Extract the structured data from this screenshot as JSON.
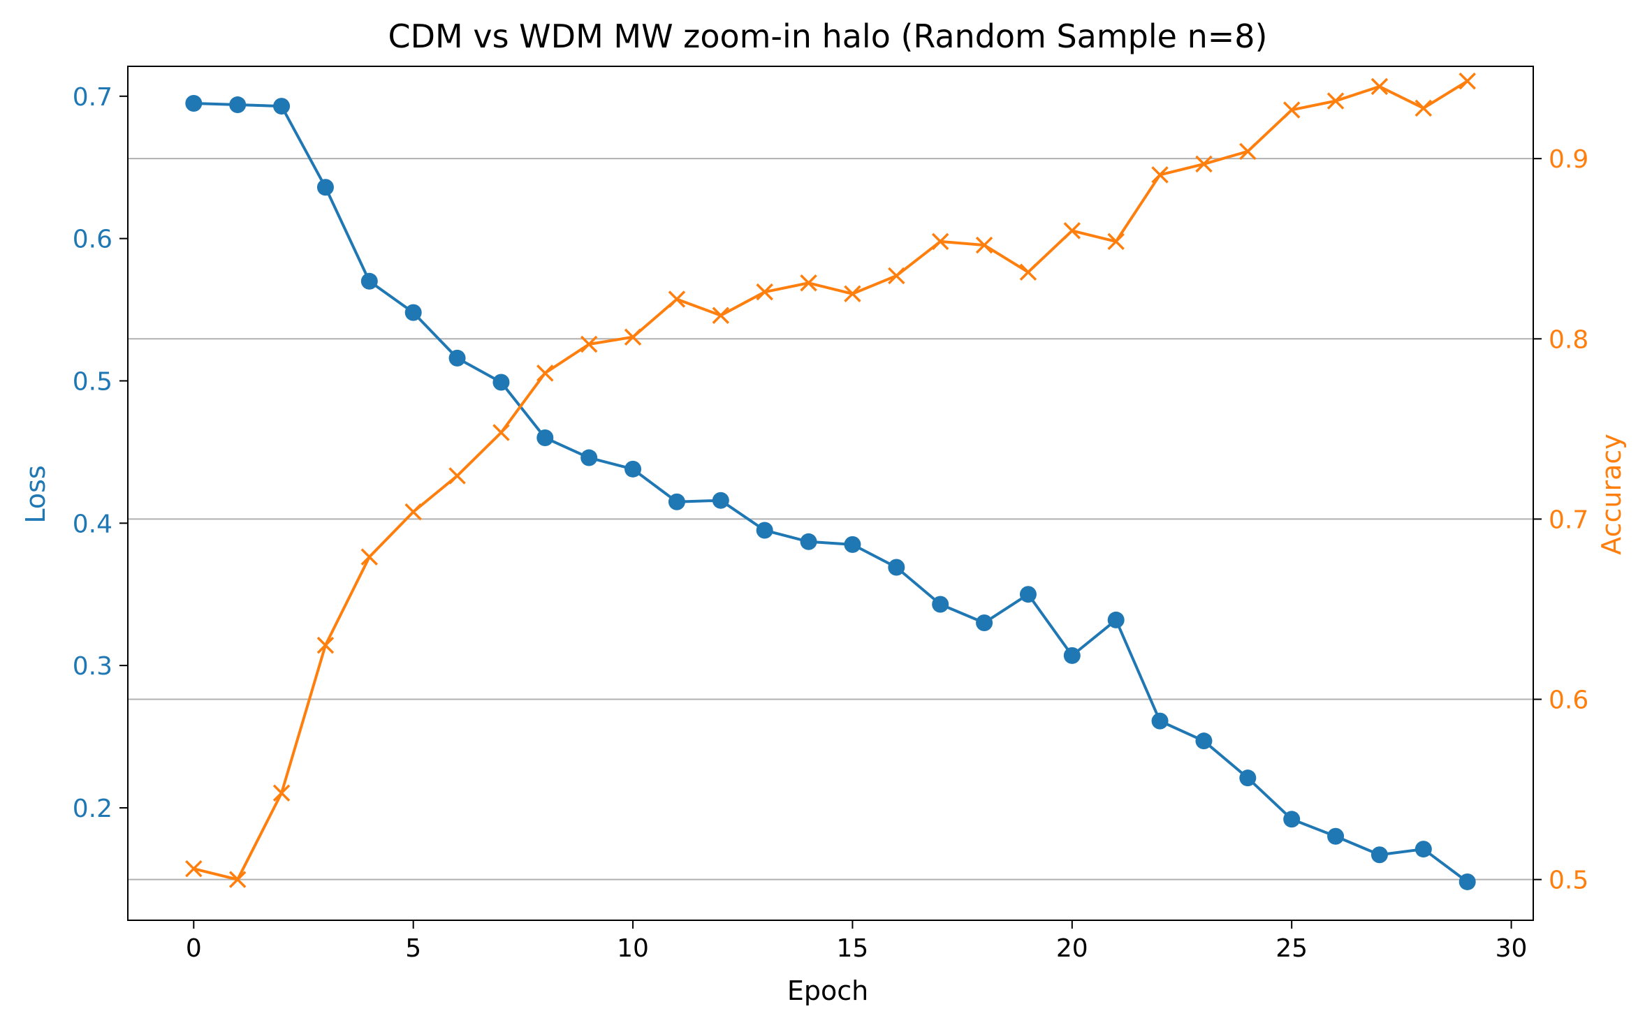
{
  "chart_data": {
    "type": "line",
    "title": "CDM vs WDM MW zoom-in halo (Random Sample n=8)",
    "xlabel": "Epoch",
    "ylabel": "Loss",
    "ylabel_right": "Accuracy",
    "xlim": [
      -1.5,
      30.5
    ],
    "ylim": [
      0.121,
      0.721
    ],
    "ylim_right": [
      0.4774,
      0.9512
    ],
    "x_ticks": [
      0,
      5,
      10,
      15,
      20,
      25,
      30
    ],
    "y_ticks": [
      0.2,
      0.3,
      0.4,
      0.5,
      0.6,
      0.7
    ],
    "y_ticks_right": [
      0.5,
      0.6,
      0.7,
      0.8,
      0.9
    ],
    "grid": "horizontal lines at right-axis ticks",
    "colors": {
      "loss": "#1f77b4",
      "accuracy": "#ff7f0e",
      "grid": "#b0b0b0",
      "axes": "#000000"
    },
    "x": [
      0,
      1,
      2,
      3,
      4,
      5,
      6,
      7,
      8,
      9,
      10,
      11,
      12,
      13,
      14,
      15,
      16,
      17,
      18,
      19,
      20,
      21,
      22,
      23,
      24,
      25,
      26,
      27,
      28,
      29
    ],
    "series": [
      {
        "key": "loss",
        "axis": "left",
        "marker": "circle",
        "values": [
          0.695,
          0.694,
          0.693,
          0.636,
          0.57,
          0.548,
          0.516,
          0.499,
          0.46,
          0.446,
          0.438,
          0.415,
          0.416,
          0.395,
          0.387,
          0.385,
          0.369,
          0.343,
          0.33,
          0.35,
          0.307,
          0.332,
          0.261,
          0.247,
          0.221,
          0.192,
          0.18,
          0.167,
          0.171,
          0.148
        ]
      },
      {
        "key": "accuracy",
        "axis": "right",
        "marker": "x",
        "values": [
          0.506,
          0.5,
          0.548,
          0.63,
          0.679,
          0.704,
          0.724,
          0.748,
          0.781,
          0.797,
          0.801,
          0.822,
          0.813,
          0.826,
          0.831,
          0.825,
          0.835,
          0.854,
          0.852,
          0.837,
          0.86,
          0.854,
          0.891,
          0.897,
          0.904,
          0.927,
          0.932,
          0.94,
          0.928,
          0.943
        ]
      }
    ]
  }
}
